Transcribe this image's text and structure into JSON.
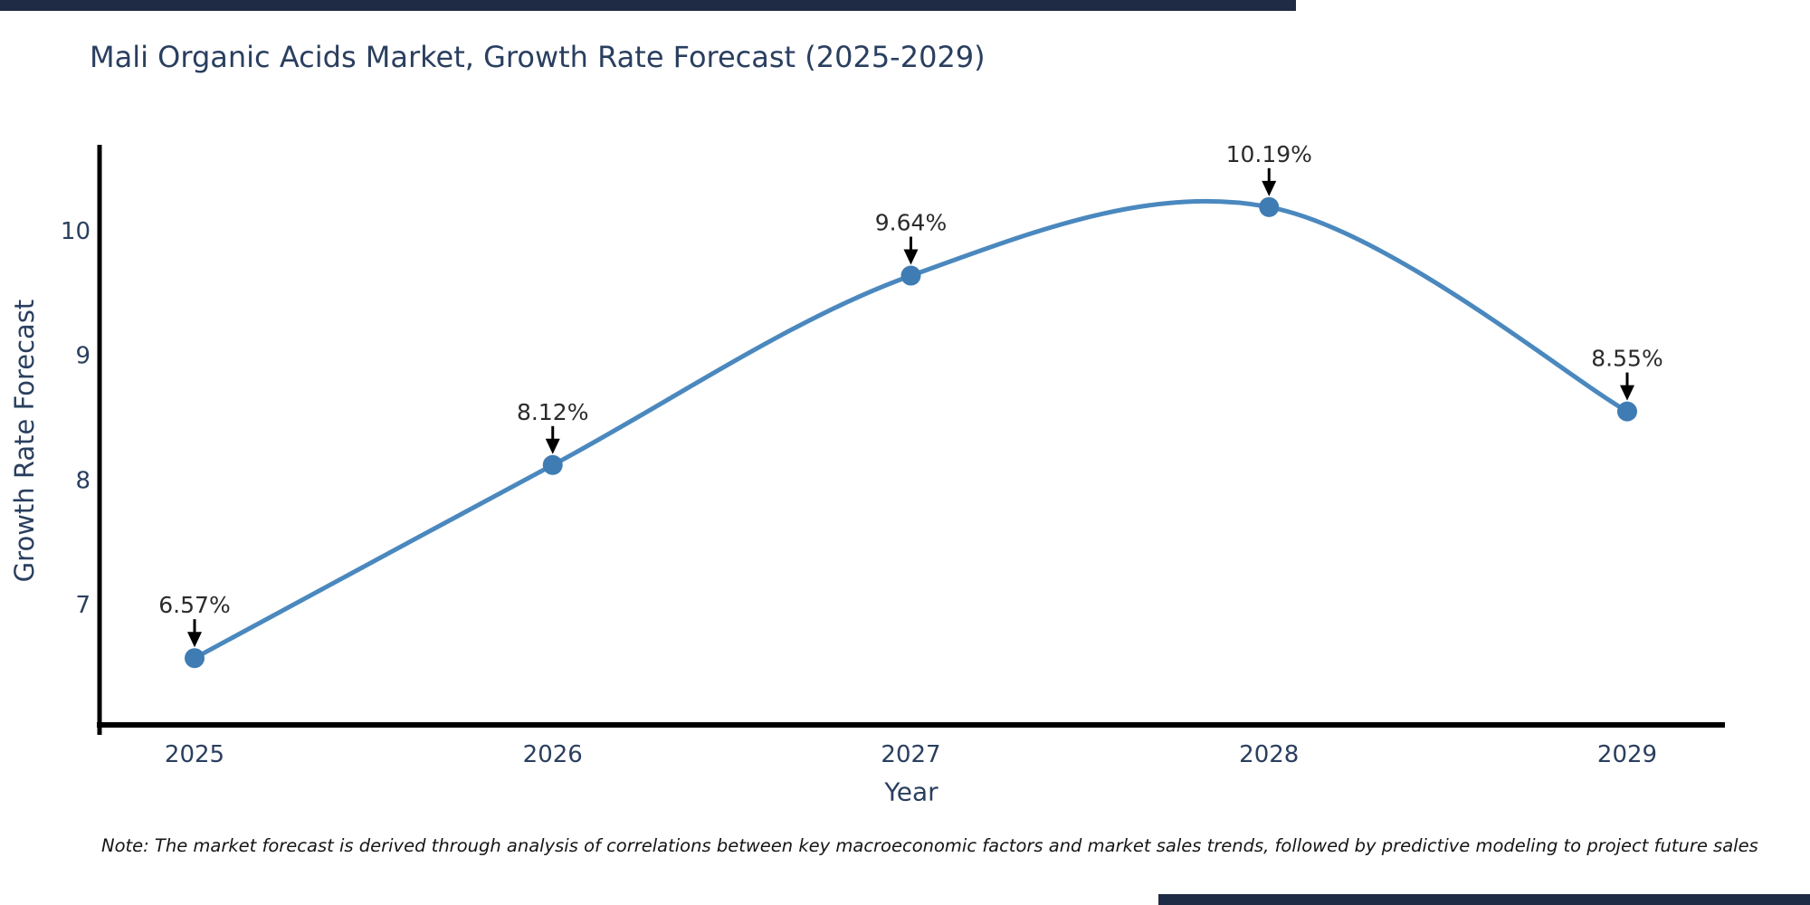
{
  "frame": {
    "top_bar_color": "#1f2a44",
    "bottom_bar_color": "#1f2a44"
  },
  "chart_data": {
    "type": "line",
    "title": "Mali Organic Acids Market, Growth Rate Forecast (2025-2029)",
    "xlabel": "Year",
    "ylabel": "Growth Rate Forecast",
    "x": [
      2025,
      2026,
      2027,
      2028,
      2029
    ],
    "series": [
      {
        "name": "Growth Rate Forecast",
        "values": [
          6.57,
          8.12,
          9.64,
          10.19,
          8.55
        ]
      }
    ],
    "point_labels": [
      "6.57%",
      "8.12%",
      "9.64%",
      "10.19%",
      "8.55%"
    ],
    "yticks": [
      7,
      8,
      9,
      10
    ],
    "ylim": [
      6.0,
      10.7
    ],
    "grid": false,
    "legend": "none",
    "line_shape": "spline",
    "line_color": "#4a88be",
    "marker_color": "#3f7cb3",
    "axis_color": "#000000",
    "tick_text_color": "#2a3f5f",
    "annotation_text_color": "#2b2b2b",
    "annotation_arrow_color": "#000000"
  },
  "note": {
    "text": "Note: The market forecast is derived through analysis of correlations between key macroeconomic factors and market sales trends, followed by predictive modeling to project future sales"
  }
}
